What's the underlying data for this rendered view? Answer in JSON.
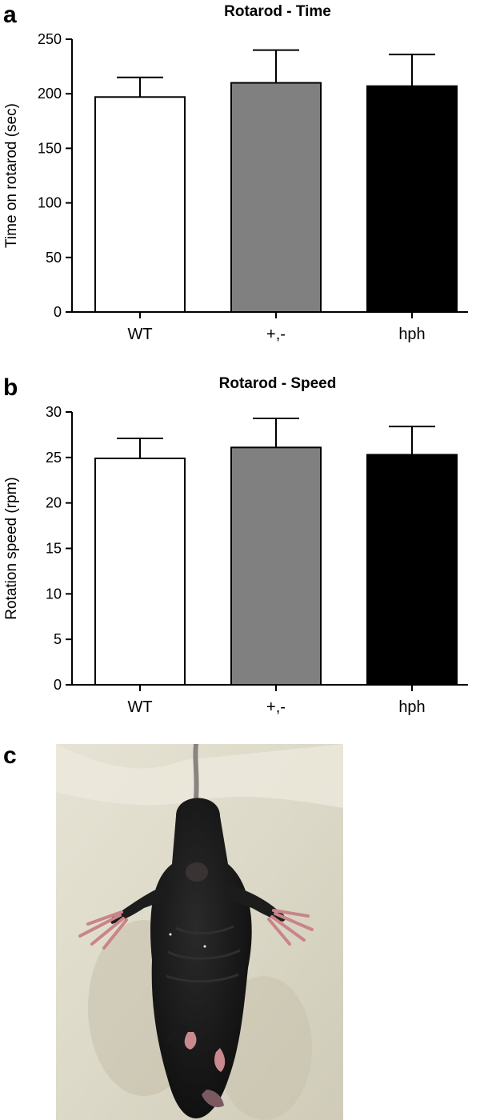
{
  "panels": {
    "a_letter": "a",
    "b_letter": "b",
    "c_letter": "c"
  },
  "photo": {
    "subject": "black mouse held by tail, hindlimbs clasped splayed",
    "colors": {
      "background": "#dcd8c6",
      "fur": "#151515",
      "paw": "#c9848a",
      "tail": "#8a8380"
    }
  },
  "chart_data": [
    {
      "type": "bar",
      "title": "Rotarod - Time",
      "xlabel": "",
      "ylabel": "Time on rotarod (sec)",
      "categories": [
        "WT",
        "+,-",
        "hph"
      ],
      "values": [
        197,
        210,
        207
      ],
      "errors": [
        18,
        30,
        29
      ],
      "colors": [
        "#ffffff",
        "#808080",
        "#000000"
      ],
      "ylim": [
        0,
        250
      ],
      "yticks": [
        0,
        50,
        100,
        150,
        200,
        250
      ],
      "grid": false
    },
    {
      "type": "bar",
      "title": "Rotarod - Speed",
      "xlabel": "",
      "ylabel": "Rotation speed (rpm)",
      "categories": [
        "WT",
        "+,-",
        "hph"
      ],
      "values": [
        24.9,
        26.1,
        25.3
      ],
      "errors": [
        2.2,
        3.2,
        3.1
      ],
      "colors": [
        "#ffffff",
        "#808080",
        "#000000"
      ],
      "ylim": [
        0,
        30
      ],
      "yticks": [
        0,
        5,
        10,
        15,
        20,
        25,
        30
      ],
      "grid": false
    }
  ]
}
